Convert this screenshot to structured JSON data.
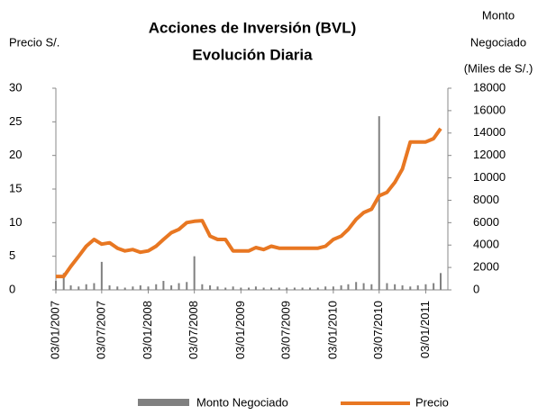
{
  "chart_data": {
    "type": "line-bar-dual",
    "title": "Acciones de Inversión (BVL)",
    "subtitle": "Evolución Diaria",
    "y_label": "Precio S/.",
    "y2_label": [
      "Monto",
      "Negociado",
      "(Miles de S/.)"
    ],
    "x": [
      "03/01/2007",
      "03/02/2007",
      "03/03/2007",
      "03/04/2007",
      "03/05/2007",
      "03/06/2007",
      "03/07/2007",
      "03/08/2007",
      "03/09/2007",
      "03/10/2007",
      "03/11/2007",
      "03/12/2007",
      "03/01/2008",
      "03/02/2008",
      "03/03/2008",
      "03/04/2008",
      "03/05/2008",
      "03/06/2008",
      "03/07/2008",
      "03/08/2008",
      "03/09/2008",
      "03/10/2008",
      "03/11/2008",
      "03/12/2008",
      "03/01/2009",
      "03/02/2009",
      "03/03/2009",
      "03/04/2009",
      "03/05/2009",
      "03/06/2009",
      "03/07/2009",
      "03/08/2009",
      "03/09/2009",
      "03/10/2009",
      "03/11/2009",
      "03/12/2009",
      "03/01/2010",
      "03/02/2010",
      "03/03/2010",
      "03/04/2010",
      "03/05/2010",
      "03/06/2010",
      "03/07/2010",
      "03/08/2010",
      "03/09/2010",
      "03/10/2010",
      "03/11/2010",
      "03/12/2010",
      "03/01/2011",
      "03/02/2011",
      "03/03/2011"
    ],
    "xlim": [
      "03/01/2007",
      "03/03/2011"
    ],
    "xticks": [
      "03/01/2007",
      "03/07/2007",
      "03/01/2008",
      "03/07/2008",
      "03/01/2009",
      "03/07/2009",
      "03/01/2010",
      "03/07/2010",
      "03/01/2011"
    ],
    "series": [
      {
        "name": "Monto Negociado",
        "color": "#808080",
        "axis": "y2",
        "values": [
          800,
          1500,
          400,
          300,
          500,
          600,
          2500,
          400,
          300,
          200,
          300,
          400,
          300,
          500,
          800,
          400,
          600,
          700,
          3000,
          500,
          400,
          300,
          200,
          300,
          200,
          200,
          300,
          200,
          200,
          200,
          200,
          200,
          200,
          200,
          200,
          300,
          300,
          400,
          500,
          700,
          600,
          500,
          15500,
          600,
          500,
          400,
          300,
          400,
          500,
          600,
          1500
        ]
      },
      {
        "name": "Precio",
        "color": "#e87722",
        "values": [
          2,
          2,
          3.5,
          5,
          6.5,
          7.5,
          6.8,
          7,
          6.2,
          5.8,
          6,
          5.6,
          5.8,
          6.5,
          7.5,
          8.5,
          9,
          10,
          10.2,
          10.3,
          8,
          7.5,
          7.5,
          5.8,
          5.8,
          5.8,
          6.3,
          6,
          6.5,
          6.2,
          6.2,
          6.2,
          6.2,
          6.2,
          6.2,
          6.5,
          7.5,
          8,
          9,
          10.5,
          11.5,
          12,
          14,
          14.5,
          16,
          18,
          22,
          22,
          22,
          22.5,
          24
        ]
      }
    ],
    "ylim": [
      0,
      30
    ],
    "yticks": [
      0,
      5,
      10,
      15,
      20,
      25,
      30
    ],
    "y2lim": [
      0,
      18000
    ],
    "y2ticks": [
      0,
      2000,
      4000,
      6000,
      8000,
      10000,
      12000,
      14000,
      16000,
      18000
    ]
  }
}
